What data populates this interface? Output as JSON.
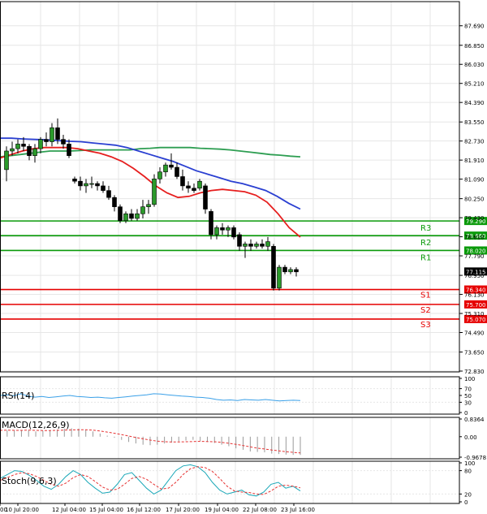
{
  "colors": {
    "background": "#ffffff",
    "grid": "#e6e6e6",
    "frame": "#000000",
    "candle": "#000000",
    "bull_candle": "#2b9a2b",
    "ma_fast": "#e61e1e",
    "ma_mid": "#2a3fd1",
    "ma_slow": "#2e9e52",
    "resistance": "#0a9a0a",
    "support": "#e60000",
    "current_price_box": "#000000",
    "rsi_line": "#3aa0e8",
    "macd_hist": "#9a9a9a",
    "macd_signal": "#e63232",
    "stoch_k": "#1ba8b8",
    "stoch_d": "#e63232"
  },
  "chart_data": [
    {
      "type": "candlestick",
      "ylim": [
        72.83,
        88.1
      ],
      "price_ticks": [
        "87.690",
        "86.850",
        "86.030",
        "85.210",
        "84.390",
        "83.550",
        "82.730",
        "81.910",
        "81.090",
        "80.250",
        "79.430",
        "78.610",
        "77.790",
        "76.950",
        "76.130",
        "75.310",
        "74.490",
        "73.650",
        "72.830"
      ],
      "time_labels": [
        "00",
        "10 Jul 20:00",
        "12 Jul 04:00",
        "15 Jul 04:00",
        "16 Jul 12:00",
        "17 Jul 20:00",
        "19 Jul 04:00",
        "22 Jul 08:00",
        "23 Jul 16:00"
      ],
      "current_price": "77.115",
      "levels": [
        {
          "name": "R3",
          "value": "79.290",
          "kind": "resistance"
        },
        {
          "name": "R2",
          "value": "78.660",
          "kind": "resistance"
        },
        {
          "name": "R1",
          "value": "78.020",
          "kind": "resistance"
        },
        {
          "name": "S1",
          "value": "76.340",
          "kind": "support"
        },
        {
          "name": "S2",
          "value": "75.700",
          "kind": "support"
        },
        {
          "name": "S3",
          "value": "75.070",
          "kind": "support"
        }
      ],
      "candles": [
        {
          "o": 81.5,
          "h": 82.5,
          "l": 81.0,
          "c": 82.3
        },
        {
          "o": 82.3,
          "h": 82.7,
          "l": 82.1,
          "c": 82.4
        },
        {
          "o": 82.4,
          "h": 82.8,
          "l": 82.2,
          "c": 82.6
        },
        {
          "o": 82.6,
          "h": 82.9,
          "l": 82.3,
          "c": 82.5
        },
        {
          "o": 82.5,
          "h": 82.6,
          "l": 81.9,
          "c": 82.1
        },
        {
          "o": 82.1,
          "h": 82.6,
          "l": 81.8,
          "c": 82.4
        },
        {
          "o": 82.4,
          "h": 82.9,
          "l": 82.2,
          "c": 82.8
        },
        {
          "o": 82.8,
          "h": 83.1,
          "l": 82.5,
          "c": 82.7
        },
        {
          "o": 82.7,
          "h": 83.5,
          "l": 82.5,
          "c": 83.3
        },
        {
          "o": 83.3,
          "h": 83.7,
          "l": 82.6,
          "c": 82.8
        },
        {
          "o": 82.8,
          "h": 83.0,
          "l": 82.4,
          "c": 82.6
        },
        {
          "o": 82.6,
          "h": 82.8,
          "l": 82.0,
          "c": 82.1
        },
        {
          "o": 81.1,
          "h": 81.2,
          "l": 80.9,
          "c": 81.0
        },
        {
          "o": 81.0,
          "h": 81.2,
          "l": 80.6,
          "c": 80.8
        },
        {
          "o": 80.8,
          "h": 81.1,
          "l": 80.5,
          "c": 80.9
        },
        {
          "o": 80.9,
          "h": 81.2,
          "l": 80.7,
          "c": 80.9
        },
        {
          "o": 80.9,
          "h": 81.0,
          "l": 80.6,
          "c": 80.8
        },
        {
          "o": 80.8,
          "h": 81.0,
          "l": 80.5,
          "c": 80.6
        },
        {
          "o": 80.6,
          "h": 80.8,
          "l": 80.2,
          "c": 80.3
        },
        {
          "o": 80.3,
          "h": 80.4,
          "l": 79.7,
          "c": 79.9
        },
        {
          "o": 79.9,
          "h": 80.0,
          "l": 79.2,
          "c": 79.3
        },
        {
          "o": 79.3,
          "h": 79.7,
          "l": 79.2,
          "c": 79.6
        },
        {
          "o": 79.6,
          "h": 79.8,
          "l": 79.3,
          "c": 79.4
        },
        {
          "o": 79.4,
          "h": 79.8,
          "l": 79.3,
          "c": 79.6
        },
        {
          "o": 79.6,
          "h": 80.2,
          "l": 79.4,
          "c": 79.9
        },
        {
          "o": 79.9,
          "h": 80.2,
          "l": 79.6,
          "c": 80.0
        },
        {
          "o": 80.0,
          "h": 81.3,
          "l": 79.9,
          "c": 81.1
        },
        {
          "o": 81.1,
          "h": 81.6,
          "l": 80.9,
          "c": 81.4
        },
        {
          "o": 81.4,
          "h": 81.8,
          "l": 81.2,
          "c": 81.7
        },
        {
          "o": 81.7,
          "h": 82.2,
          "l": 81.5,
          "c": 81.6
        },
        {
          "o": 81.6,
          "h": 81.8,
          "l": 81.1,
          "c": 81.2
        },
        {
          "o": 81.2,
          "h": 81.5,
          "l": 80.6,
          "c": 80.8
        },
        {
          "o": 80.8,
          "h": 81.0,
          "l": 80.5,
          "c": 80.7
        },
        {
          "o": 80.7,
          "h": 80.9,
          "l": 80.5,
          "c": 80.6
        },
        {
          "o": 80.7,
          "h": 81.1,
          "l": 80.6,
          "c": 81.0
        },
        {
          "o": 80.8,
          "h": 80.9,
          "l": 79.6,
          "c": 79.8
        },
        {
          "o": 79.7,
          "h": 79.8,
          "l": 78.5,
          "c": 78.7
        },
        {
          "o": 78.7,
          "h": 79.1,
          "l": 78.5,
          "c": 79.0
        },
        {
          "o": 79.0,
          "h": 79.2,
          "l": 78.7,
          "c": 78.9
        },
        {
          "o": 78.9,
          "h": 79.1,
          "l": 78.6,
          "c": 79.0
        },
        {
          "o": 79.0,
          "h": 79.1,
          "l": 78.5,
          "c": 78.6
        },
        {
          "o": 78.7,
          "h": 78.8,
          "l": 78.0,
          "c": 78.2
        },
        {
          "o": 78.2,
          "h": 78.4,
          "l": 77.7,
          "c": 78.3
        },
        {
          "o": 78.3,
          "h": 78.5,
          "l": 78.0,
          "c": 78.2
        },
        {
          "o": 78.2,
          "h": 78.4,
          "l": 78.1,
          "c": 78.3
        },
        {
          "o": 78.3,
          "h": 78.5,
          "l": 78.1,
          "c": 78.2
        },
        {
          "o": 78.2,
          "h": 78.6,
          "l": 78.0,
          "c": 78.4
        },
        {
          "o": 78.2,
          "h": 78.3,
          "l": 76.3,
          "c": 76.4
        },
        {
          "o": 76.4,
          "h": 77.4,
          "l": 76.3,
          "c": 77.3
        },
        {
          "o": 77.3,
          "h": 77.4,
          "l": 77.0,
          "c": 77.1
        },
        {
          "o": 77.1,
          "h": 77.3,
          "l": 77.0,
          "c": 77.2
        },
        {
          "o": 77.2,
          "h": 77.3,
          "l": 76.9,
          "c": 77.1
        }
      ],
      "moving_averages": [
        {
          "color_key": "ma_slow",
          "values": [
            82.05,
            82.1,
            82.15,
            82.2,
            82.25,
            82.3,
            82.3,
            82.3,
            82.32,
            82.35,
            82.35,
            82.35,
            82.35,
            82.35,
            82.4,
            82.42,
            82.45,
            82.45,
            82.45,
            82.45,
            82.42,
            82.4,
            82.38,
            82.35,
            82.3,
            82.25,
            82.2,
            82.15,
            82.12,
            82.08,
            82.05
          ]
        },
        {
          "color_key": "ma_mid",
          "values": [
            82.85,
            82.85,
            82.82,
            82.8,
            82.78,
            82.75,
            82.72,
            82.7,
            82.65,
            82.6,
            82.55,
            82.45,
            82.3,
            82.15,
            82.0,
            81.85,
            81.65,
            81.45,
            81.3,
            81.15,
            81.0,
            80.9,
            80.75,
            80.6,
            80.35,
            80.05,
            79.8
          ]
        },
        {
          "color_key": "ma_fast",
          "values": [
            82.0,
            82.15,
            82.3,
            82.4,
            82.45,
            82.45,
            82.45,
            82.4,
            82.3,
            82.2,
            82.05,
            81.85,
            81.55,
            81.2,
            80.8,
            80.5,
            80.3,
            80.35,
            80.5,
            80.6,
            80.65,
            80.6,
            80.55,
            80.4,
            80.1,
            79.6,
            79.0,
            78.6
          ]
        }
      ]
    },
    {
      "type": "line",
      "title": "RSI(14)",
      "ylim": [
        0,
        100
      ],
      "ticks": [
        "100",
        "70",
        "50",
        "30",
        "0"
      ],
      "values": [
        50,
        52,
        49,
        55,
        48,
        45,
        47,
        44,
        46,
        48,
        50,
        47,
        46,
        44,
        45,
        43,
        42,
        44,
        46,
        48,
        50,
        52,
        55,
        54,
        52,
        50,
        48,
        47,
        45,
        44,
        42,
        38,
        36,
        37,
        35,
        38,
        37,
        36,
        38,
        36,
        34,
        35,
        36,
        35
      ]
    },
    {
      "type": "bar",
      "title": "MACD(12,26,9)",
      "ylim": [
        -0.9678,
        0.8364
      ],
      "ticks": [
        "0.8364",
        "0.00",
        "-0.9678"
      ],
      "values": [
        0.35,
        0.3,
        0.28,
        0.32,
        0.3,
        0.25,
        0.28,
        0.3,
        0.34,
        0.38,
        0.4,
        0.38,
        0.32,
        0.25,
        0.15,
        0.05,
        -0.05,
        -0.15,
        -0.25,
        -0.32,
        -0.38,
        -0.4,
        -0.38,
        -0.32,
        -0.28,
        -0.22,
        -0.18,
        -0.15,
        -0.2,
        -0.25,
        -0.3,
        -0.38,
        -0.45,
        -0.55,
        -0.62,
        -0.7,
        -0.72,
        -0.74,
        -0.8,
        -0.82,
        -0.85,
        -0.86,
        -0.86
      ],
      "signal": [
        0.3,
        0.31,
        0.3,
        0.3,
        0.31,
        0.3,
        0.29,
        0.29,
        0.3,
        0.31,
        0.32,
        0.33,
        0.33,
        0.31,
        0.27,
        0.22,
        0.16,
        0.1,
        0.03,
        -0.04,
        -0.1,
        -0.16,
        -0.21,
        -0.24,
        -0.25,
        -0.25,
        -0.24,
        -0.23,
        -0.22,
        -0.23,
        -0.24,
        -0.27,
        -0.31,
        -0.36,
        -0.42,
        -0.48,
        -0.54,
        -0.58,
        -0.63,
        -0.67,
        -0.71,
        -0.74,
        -0.77
      ]
    },
    {
      "type": "line",
      "title": "Stoch(9,6,3)",
      "ylim": [
        0,
        100
      ],
      "ticks": [
        "100",
        "80",
        "20",
        "0"
      ],
      "k": [
        60,
        70,
        80,
        78,
        68,
        55,
        40,
        32,
        45,
        65,
        80,
        70,
        50,
        35,
        22,
        25,
        45,
        70,
        75,
        55,
        35,
        20,
        30,
        55,
        80,
        92,
        95,
        90,
        75,
        50,
        30,
        20,
        25,
        30,
        18,
        15,
        25,
        45,
        50,
        35,
        40,
        28
      ],
      "d": [
        55,
        62,
        70,
        75,
        72,
        65,
        55,
        45,
        40,
        48,
        62,
        70,
        65,
        52,
        38,
        30,
        32,
        45,
        60,
        65,
        58,
        45,
        33,
        35,
        50,
        70,
        85,
        90,
        88,
        78,
        60,
        40,
        28,
        25,
        24,
        20,
        19,
        28,
        40,
        43,
        40,
        36
      ]
    }
  ]
}
